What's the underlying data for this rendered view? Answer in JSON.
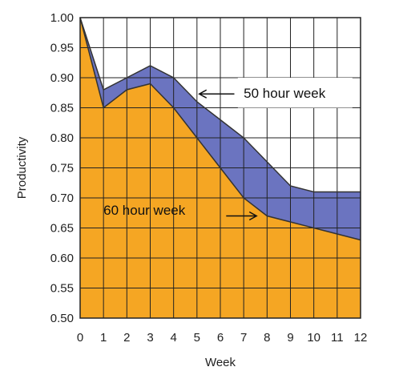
{
  "chart_data": {
    "type": "area",
    "xlabel": "Week",
    "ylabel": "Productivity",
    "xlim": [
      0,
      12
    ],
    "ylim": [
      0.5,
      1.0
    ],
    "grid": true,
    "x_ticks": [
      "0",
      "1",
      "2",
      "3",
      "4",
      "5",
      "6",
      "7",
      "8",
      "9",
      "10",
      "11",
      "12"
    ],
    "y_ticks": [
      "0.50",
      "0.55",
      "0.60",
      "0.65",
      "0.70",
      "0.75",
      "0.80",
      "0.85",
      "0.90",
      "0.95",
      "1.00"
    ],
    "x": [
      0,
      1,
      2,
      3,
      4,
      5,
      6,
      7,
      8,
      9,
      10,
      11,
      12
    ],
    "series": [
      {
        "name": "50 hour week",
        "color": "#6b74c0",
        "values": [
          1.0,
          0.88,
          0.9,
          0.92,
          0.9,
          0.86,
          0.83,
          0.8,
          0.76,
          0.72,
          0.71,
          0.71,
          0.71
        ]
      },
      {
        "name": "60 hour week",
        "color": "#f5a623",
        "values": [
          1.0,
          0.85,
          0.88,
          0.89,
          0.85,
          0.8,
          0.75,
          0.7,
          0.67,
          0.66,
          0.65,
          0.64,
          0.63
        ]
      }
    ],
    "annotations": [
      {
        "text": "50 hour week",
        "series": "50 hour week"
      },
      {
        "text": "60 hour week",
        "series": "60 hour week"
      }
    ]
  }
}
